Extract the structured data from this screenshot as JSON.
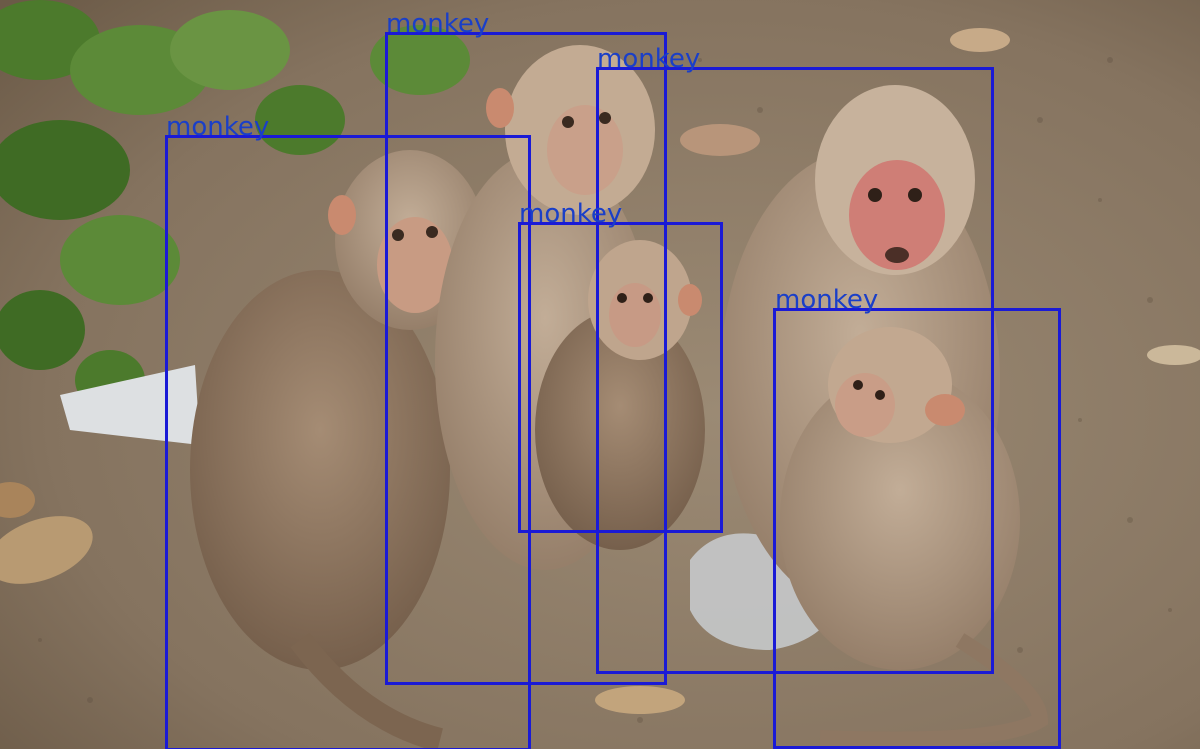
{
  "image": {
    "subject": "five macaque monkeys on a dirt path with green foliage",
    "colors": {
      "ground": "#8d7c67",
      "foliage": "#4f7a2e",
      "fur": "#a8917a",
      "box": "#1a1ad6",
      "label": "#1a3fc8"
    }
  },
  "detections": [
    {
      "label": "monkey"
    },
    {
      "label": "monkey"
    },
    {
      "label": "monkey"
    },
    {
      "label": "monkey"
    },
    {
      "label": "monkey"
    }
  ]
}
